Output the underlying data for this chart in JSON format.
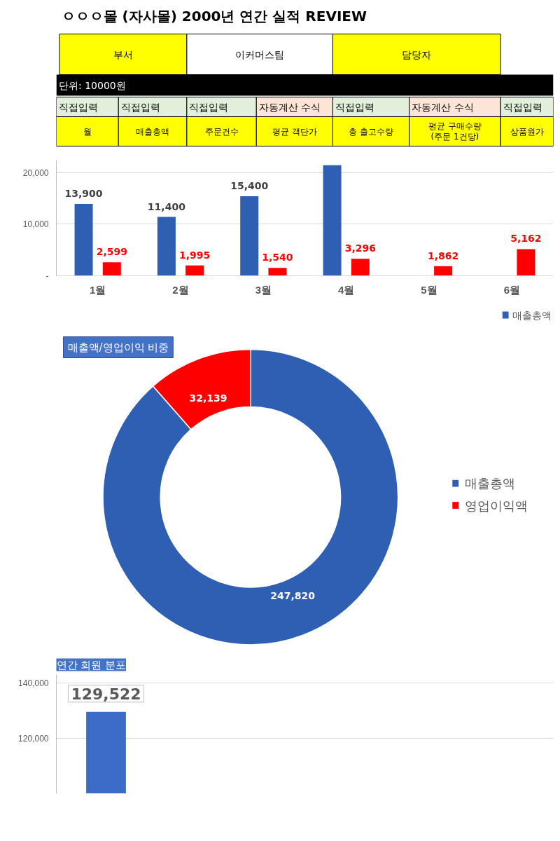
{
  "chart_data": [
    {
      "type": "bar",
      "title": "ㅇㅇㅇ몰 (자사몰) 2000년 연간 실적 REVIEW",
      "annotations": [
        "부서",
        "이커머스팀",
        "담당자",
        "단위: 10000원",
        "직접입력",
        "직접입력",
        "직접입력",
        "자동계산 수식",
        "직접입력",
        "자동계산 수식",
        "직접입력",
        "월",
        "매출총액",
        "주문건수",
        "평균 객단가",
        "총 출고수량",
        "평균 구매수량\n(주문 1건당)",
        "상품원가"
      ],
      "categories": [
        "1월",
        "2월",
        "3월",
        "4월",
        "5월",
        "6월"
      ],
      "series": [
        {
          "name": "매출총액",
          "color": "#2f5fb3",
          "values": [
            13900,
            11400,
            15400,
            21400,
            null,
            null
          ],
          "value_labels": [
            "13,900",
            "11,400",
            "15,400",
            null,
            null,
            null
          ]
        },
        {
          "color": "#ff0000",
          "values": [
            2599,
            1995,
            1540,
            3296,
            1862,
            5162
          ],
          "value_labels": [
            "2,599",
            "1,995",
            "1,540",
            "3,296",
            "1,862",
            "5,162"
          ]
        }
      ],
      "ylim": [
        0,
        22400
      ],
      "yticks": [
        {
          "value": 0,
          "label": "-"
        },
        {
          "value": 10000,
          "label": "10,000"
        },
        {
          "value": 20000,
          "label": "20,000"
        }
      ],
      "grid": "y",
      "legend": "bottom right"
    },
    {
      "type": "donut",
      "title": "매출액/영업이익 비중",
      "categories": [
        "매출총액",
        "영업이익액"
      ],
      "values": [
        247820,
        32139
      ],
      "colors": [
        "#2f5fb3",
        "#ff0000"
      ],
      "value_labels": [
        "247,820",
        "32,139"
      ],
      "legend": "right"
    },
    {
      "type": "bar",
      "title": "연간 회원 분포",
      "categories": [
        null
      ],
      "values": [
        129522
      ],
      "color": "#3a6cc8",
      "value_labels": [
        "129,522"
      ],
      "ylim": [
        100000,
        143000
      ],
      "yticks": [
        {
          "value": 120000,
          "label": "120,000"
        },
        {
          "value": 140000,
          "label": "140,000"
        }
      ],
      "grid": "y"
    }
  ]
}
